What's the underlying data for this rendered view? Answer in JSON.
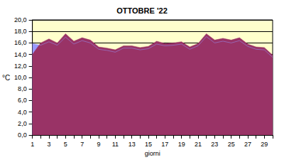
{
  "chart_data": {
    "type": "area",
    "title": "OTTOBRE '22",
    "x_label": "giorni",
    "y_label": "°C",
    "categories": [
      "1",
      null,
      "3",
      null,
      "5",
      null,
      "7",
      null,
      "9",
      null,
      "11",
      null,
      "13",
      null,
      "15",
      null,
      "17",
      null,
      "19",
      null,
      "21",
      null,
      "23",
      null,
      "25",
      null,
      "27",
      null,
      "29",
      null
    ],
    "series": [
      {
        "color": "#9999ff",
        "values": [
          15.9,
          15.6,
          16.2,
          15.6,
          17.0,
          15.8,
          16.4,
          16.0,
          14.9,
          14.7,
          14.4,
          15.1,
          15.1,
          14.8,
          15.0,
          15.8,
          15.5,
          15.6,
          15.8,
          14.9,
          15.5,
          17.1,
          16.0,
          16.3,
          16.0,
          16.4,
          15.4,
          14.9,
          14.8,
          13.5
        ]
      },
      {
        "color": "#993366",
        "values": [
          14.0,
          16.0,
          16.7,
          16.0,
          17.6,
          16.3,
          16.9,
          16.5,
          15.3,
          15.1,
          14.8,
          15.5,
          15.5,
          15.2,
          15.4,
          16.3,
          15.9,
          16.0,
          16.2,
          15.3,
          15.9,
          17.6,
          16.5,
          16.8,
          16.5,
          16.9,
          15.8,
          15.3,
          15.2,
          13.9
        ]
      }
    ],
    "ylim": [
      0,
      20
    ],
    "yticks": [
      {
        "value": 0,
        "label": "0,0"
      },
      {
        "value": 2,
        "label": "2,0"
      },
      {
        "value": 4,
        "label": "4,0"
      },
      {
        "value": 6,
        "label": "6,0"
      },
      {
        "value": 8,
        "label": "8,0"
      },
      {
        "value": 10,
        "label": "10,0"
      },
      {
        "value": 12,
        "label": "12,0"
      },
      {
        "value": 14,
        "label": "14,0"
      },
      {
        "value": 16,
        "label": "16,0"
      },
      {
        "value": 18,
        "label": "18,0"
      },
      {
        "value": 20,
        "label": "20,0"
      }
    ],
    "grid": true
  }
}
